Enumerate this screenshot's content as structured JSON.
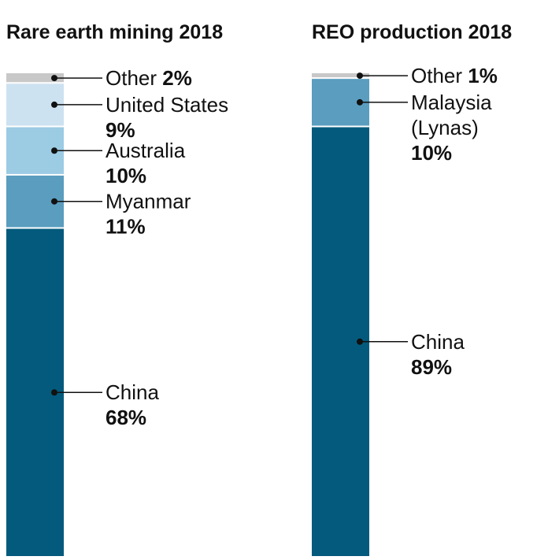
{
  "chart_data": [
    {
      "type": "bar",
      "stacked": true,
      "title": "Rare earth mining 2018",
      "unit": "%",
      "segments": [
        {
          "label": "China",
          "value": 68,
          "color": "#035a7c"
        },
        {
          "label": "Myanmar",
          "value": 11,
          "color": "#5a9dbf"
        },
        {
          "label": "Australia",
          "value": 10,
          "color": "#9ccbe4"
        },
        {
          "label": "United States",
          "value": 9,
          "color": "#cde2f0"
        },
        {
          "label": "Other",
          "value": 2,
          "color": "#c8c8c8"
        }
      ]
    },
    {
      "type": "bar",
      "stacked": true,
      "title": "REO production 2018",
      "unit": "%",
      "segments": [
        {
          "label": "China",
          "value": 89,
          "color": "#035a7c"
        },
        {
          "label": "Malaysia (Lynas)",
          "value": 10,
          "color": "#5a9dbf"
        },
        {
          "label": "Other",
          "value": 1,
          "color": "#c8c8c8"
        }
      ]
    }
  ]
}
